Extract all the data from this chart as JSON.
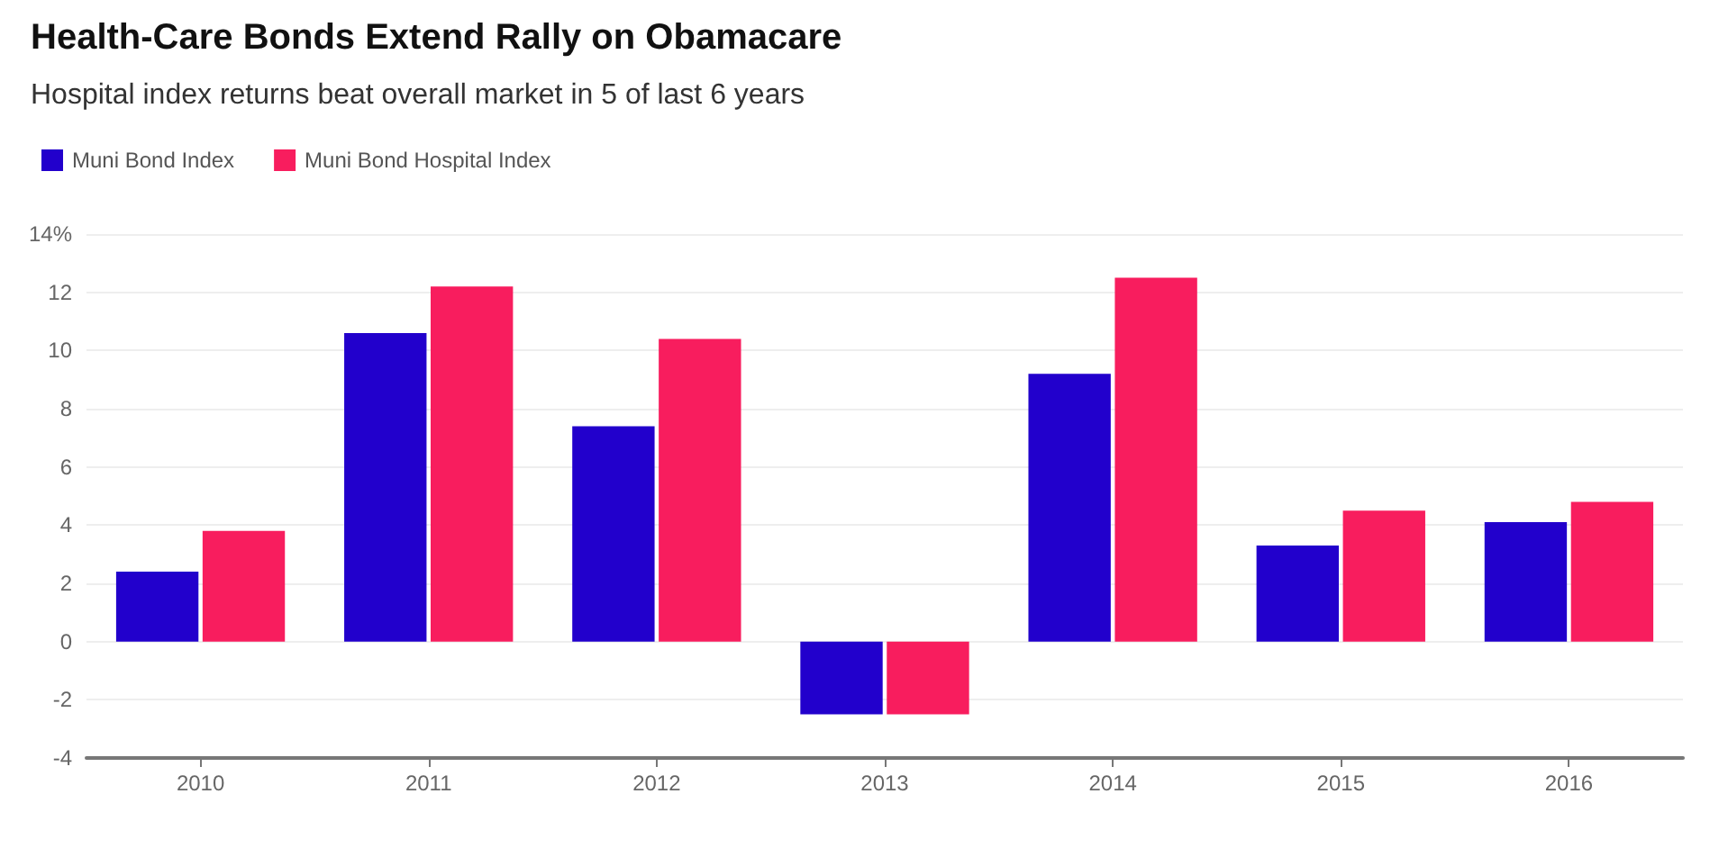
{
  "chart_data": {
    "type": "bar",
    "title": "Health-Care Bonds Extend Rally on Obamacare",
    "subtitle": "Hospital index returns beat overall market in 5 of last 6 years",
    "categories": [
      "2010",
      "2011",
      "2012",
      "2013",
      "2014",
      "2015",
      "2016"
    ],
    "series": [
      {
        "name": "Muni Bond Index",
        "color": "#2200cc",
        "values": [
          2.4,
          10.6,
          7.4,
          -2.5,
          9.2,
          3.3,
          4.1
        ]
      },
      {
        "name": "Muni Bond Hospital Index",
        "color": "#f81d5e",
        "values": [
          3.8,
          12.2,
          10.4,
          -2.5,
          12.5,
          4.5,
          4.8
        ]
      }
    ],
    "ylim": [
      -4,
      14
    ],
    "yticks": [
      -4,
      -2,
      0,
      2,
      4,
      6,
      8,
      10,
      12,
      {
        "value": 14,
        "label": "14%"
      }
    ],
    "grid": "y",
    "legend": "top left"
  }
}
